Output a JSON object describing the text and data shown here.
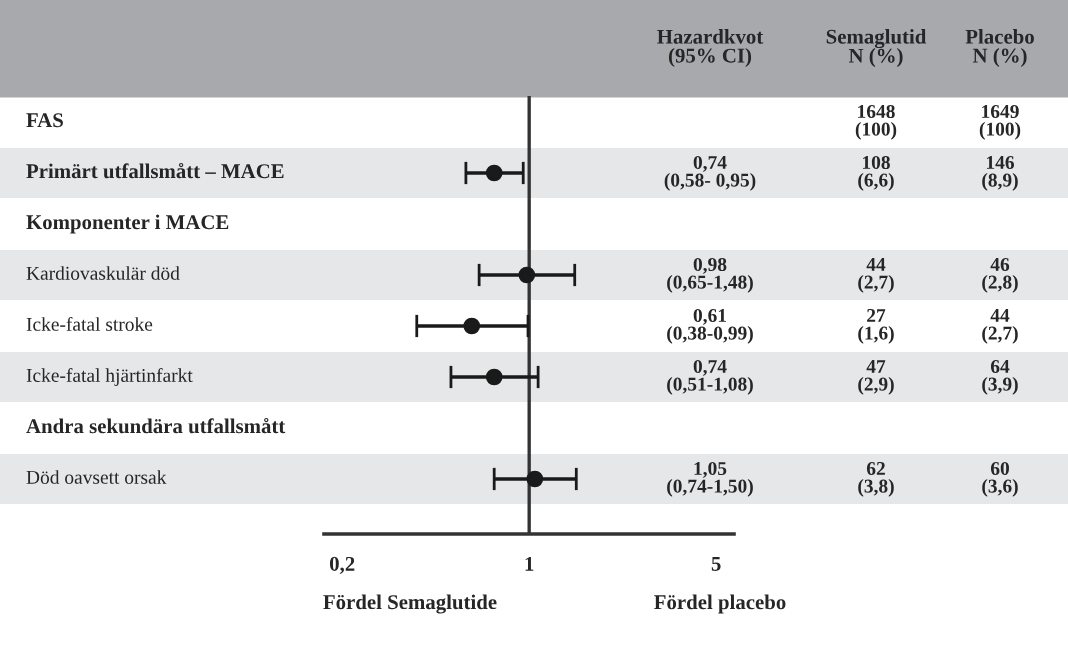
{
  "chart_data": {
    "type": "scatter",
    "orientation": "horizontal",
    "categories": [
      "FAS",
      "Primärt utfallsmått – MACE",
      "Komponenter i MACE",
      "Kardiovaskulär död",
      "Icke-fatal stroke",
      "Icke-fatal hjärtinfarkt",
      "Andra sekundära utfallsmått",
      "Död oavsett orsak"
    ],
    "series": [
      {
        "color": "#1a1a1a",
        "values": [
          null,
          0.74,
          null,
          0.98,
          0.61,
          0.74,
          null,
          1.05
        ],
        "errors": [
          null,
          [
            0.58,
            0.95
          ],
          null,
          [
            0.65,
            1.48
          ],
          [
            0.38,
            0.99
          ],
          [
            0.51,
            1.08
          ],
          null,
          [
            0.74,
            1.5
          ]
        ]
      }
    ],
    "log": "x",
    "xlim": [
      0.171,
      5.83
    ],
    "xticks": [
      {
        "value": 0.2,
        "label": "0,2"
      },
      1,
      5
    ],
    "ref_lines": [
      {
        "axis": "x",
        "value": 1
      }
    ],
    "marker": "circle",
    "grid": false,
    "annotations": [
      "Hazardkvot\n(95% CI)",
      "Semaglutid\nN (%)",
      "Placebo\nN (%)",
      "Fördel Semaglutide",
      "Fördel placebo",
      "1648\n(100)",
      "1649\n(100)",
      "0,74\n(0,58- 0,95)",
      "108\n(6,6)",
      "146\n(8,9)",
      "0,98\n(0,65-1,48)",
      "44\n(2,7)",
      "46\n(2,8)",
      "0,61\n(0,38-0,99)",
      "27\n(1,6)",
      "44\n(2,7)",
      "0,74\n(0,51-1,08)",
      "47\n(2,9)",
      "64\n(3,9)",
      "1,05\n(0,74-1,50)",
      "62\n(3,8)",
      "60\n(3,6)"
    ]
  }
}
